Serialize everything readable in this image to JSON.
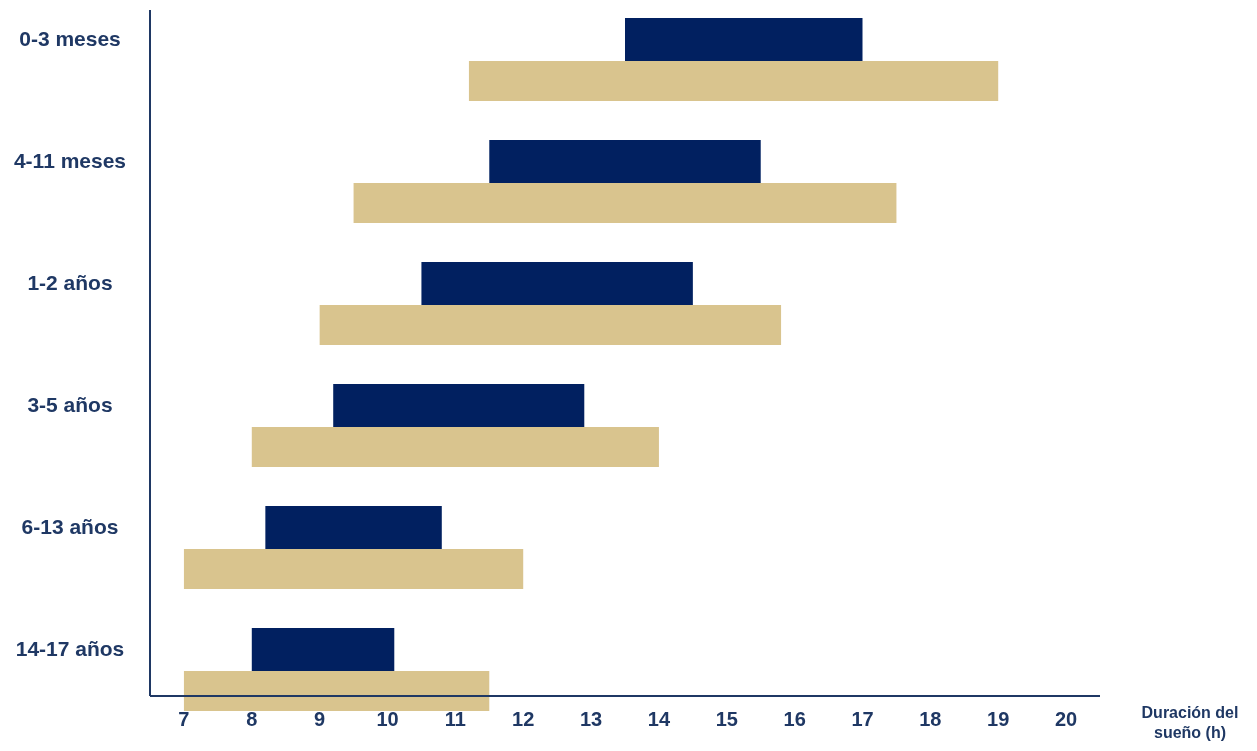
{
  "chart_data": {
    "type": "bar",
    "orientation": "horizontal",
    "xlabel": "Duración del sueño (h)",
    "categories": [
      "0-3 meses",
      "4-11 meses",
      "1-2 años",
      "3-5 años",
      "6-13 años",
      "14-17 años"
    ],
    "series": [
      {
        "color": "#012060",
        "base": [
          13.5,
          11.5,
          10.5,
          9.2,
          8.2,
          8
        ],
        "values": [
          3.5,
          4,
          4,
          3.7,
          2.6,
          2.1
        ]
      },
      {
        "color": "#d9c48e",
        "base": [
          11.2,
          9.5,
          9,
          8,
          7,
          7
        ],
        "values": [
          7.8,
          8,
          6.8,
          6,
          5,
          4.5
        ]
      }
    ],
    "xlim": [
      6.5,
      20.5
    ],
    "xticks": [
      7,
      8,
      9,
      10,
      11,
      12,
      13,
      14,
      15,
      16,
      17,
      18,
      19,
      20
    ],
    "grid": false
  }
}
